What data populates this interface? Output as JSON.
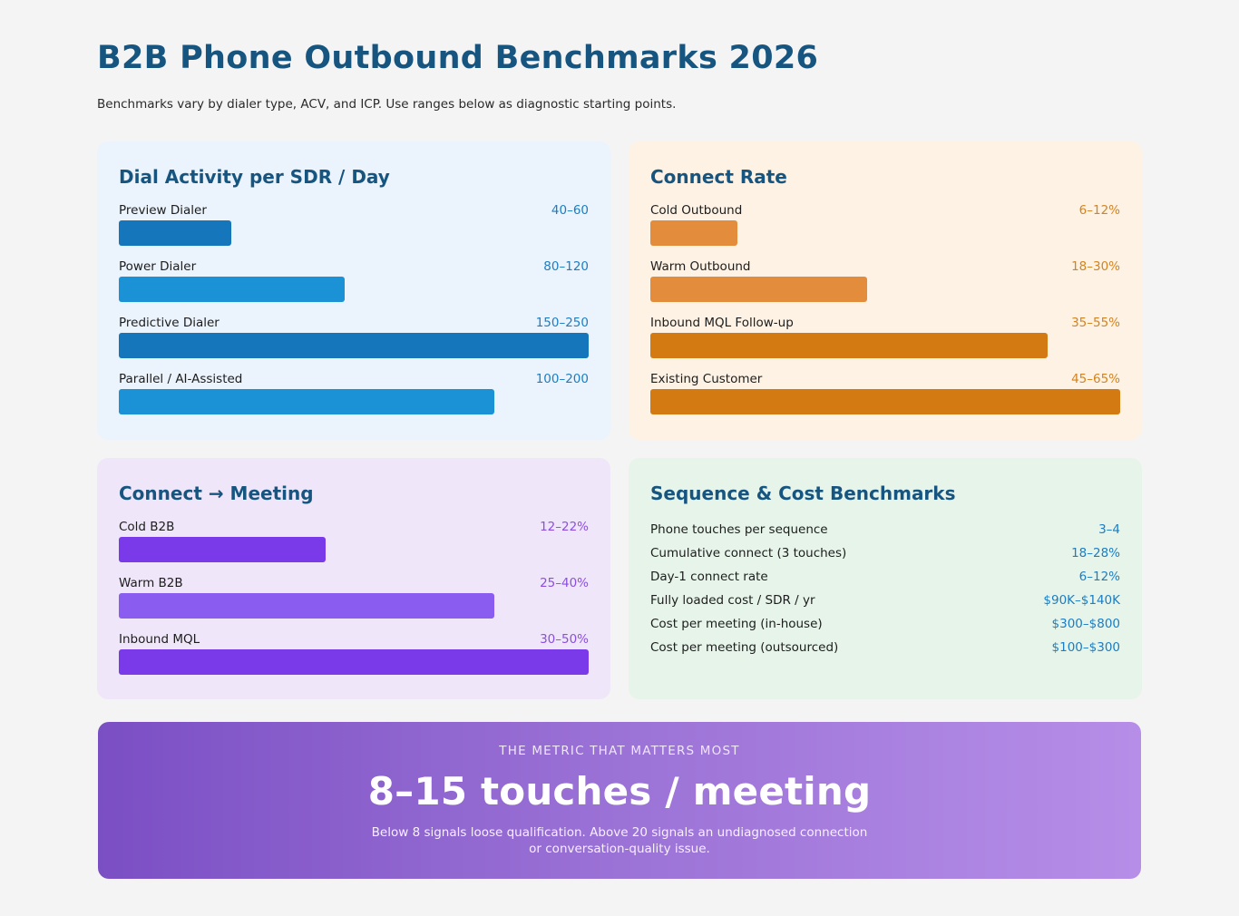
{
  "header": {
    "title": "B2B Phone Outbound Benchmarks 2026",
    "subtitle": "Benchmarks vary by dialer type, ACV, and ICP. Use ranges below as diagnostic starting points."
  },
  "chart_data": [
    {
      "type": "bar",
      "orientation": "horizontal",
      "title": "Dial Activity per SDR / Day",
      "accent": "#1b91d6",
      "range_color": "#1b7dc4",
      "bars": [
        {
          "label": "Preview Dialer",
          "range": "40–60",
          "min": 40,
          "max": 60,
          "color": "#1576bc"
        },
        {
          "label": "Power Dialer",
          "range": "80–120",
          "min": 80,
          "max": 120,
          "color": "#1b91d6"
        },
        {
          "label": "Predictive Dialer",
          "range": "150–250",
          "min": 150,
          "max": 250,
          "color": "#1576bc"
        },
        {
          "label": "Parallel / AI-Assisted",
          "range": "100–200",
          "min": 100,
          "max": 200,
          "color": "#1b91d6"
        }
      ]
    },
    {
      "type": "bar",
      "orientation": "horizontal",
      "title": "Connect Rate",
      "range_color": "#d4831f",
      "bars": [
        {
          "label": "Cold Outbound",
          "range": "6–12%",
          "min": 6,
          "max": 12,
          "color": "#e38c3b"
        },
        {
          "label": "Warm Outbound",
          "range": "18–30%",
          "min": 18,
          "max": 30,
          "color": "#e38c3b"
        },
        {
          "label": "Inbound MQL Follow-up",
          "range": "35–55%",
          "min": 35,
          "max": 55,
          "color": "#d37a12"
        },
        {
          "label": "Existing Customer",
          "range": "45–65%",
          "min": 45,
          "max": 65,
          "color": "#d37a12"
        }
      ]
    },
    {
      "type": "bar",
      "orientation": "horizontal",
      "title": "Connect → Meeting",
      "range_color": "#8b4fe0",
      "bars": [
        {
          "label": "Cold B2B",
          "range": "12–22%",
          "min": 12,
          "max": 22,
          "color": "#7a3aea"
        },
        {
          "label": "Warm B2B",
          "range": "25–40%",
          "min": 25,
          "max": 40,
          "color": "#8b5cf0"
        },
        {
          "label": "Inbound MQL",
          "range": "30–50%",
          "min": 30,
          "max": 50,
          "color": "#7a3aea"
        }
      ]
    }
  ],
  "sequence": {
    "title": "Sequence & Cost Benchmarks",
    "rows": [
      {
        "label": "Phone touches per sequence",
        "value": "3–4"
      },
      {
        "label": "Cumulative connect (3 touches)",
        "value": "18–28%"
      },
      {
        "label": "Day-1 connect rate",
        "value": "6–12%"
      },
      {
        "label": "Fully loaded cost / SDR / yr",
        "value": "$90K–$140K"
      },
      {
        "label": "Cost per meeting (in-house)",
        "value": "$300–$800"
      },
      {
        "label": "Cost per meeting (outsourced)",
        "value": "$100–$300"
      }
    ]
  },
  "banner": {
    "kicker": "THE METRIC THAT MATTERS MOST",
    "headline": "8–15 touches / meeting",
    "note": "Below 8 signals loose qualification. Above 20 signals an undiagnosed connection or conversation-quality issue."
  }
}
